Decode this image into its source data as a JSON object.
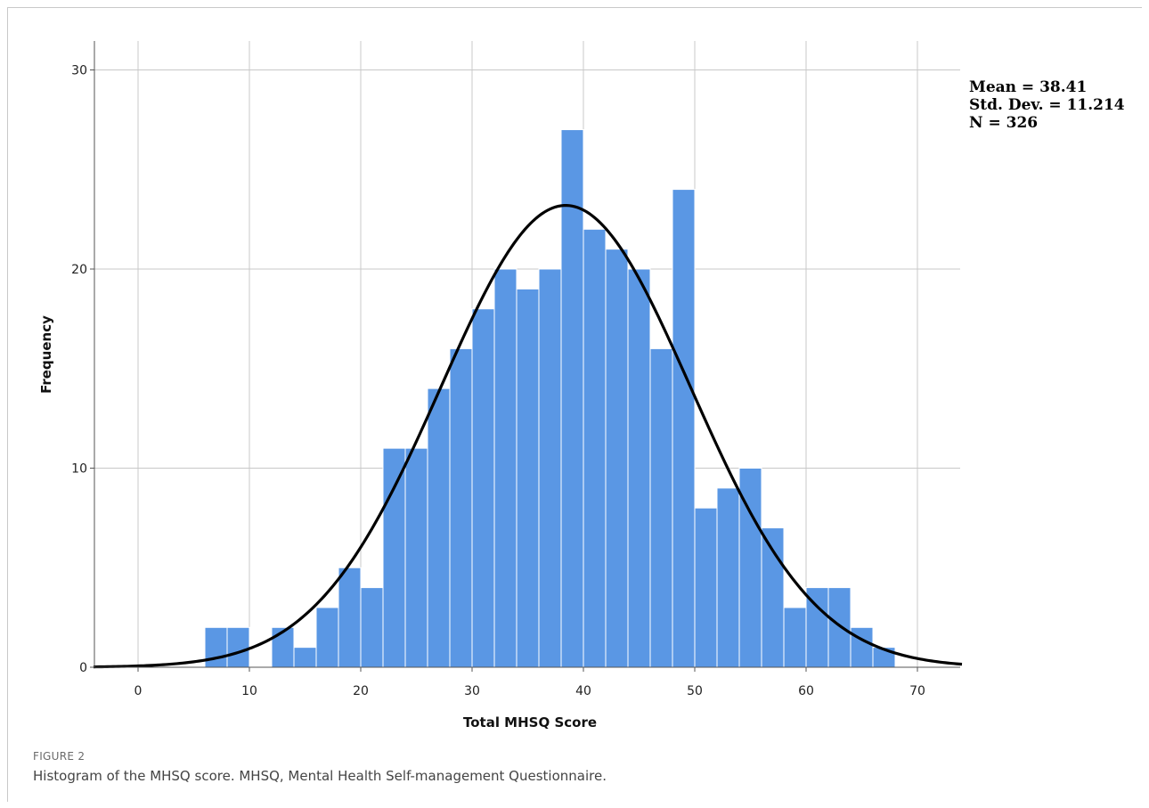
{
  "figure": {
    "label": "FIGURE 2",
    "caption": "Histogram of the MHSQ score. MHSQ, Mental Health Self-management Questionnaire."
  },
  "stats": {
    "mean": "Mean = 38.41",
    "sd": "Std. Dev. = 11.214",
    "n": "N = 326"
  },
  "chart_data": {
    "type": "bar",
    "title": "",
    "xlabel": "Total MHSQ Score",
    "ylabel": "Frequency",
    "xlim": [
      -4,
      74
    ],
    "ylim": [
      0,
      31
    ],
    "x_ticks": [
      0,
      10,
      20,
      30,
      40,
      50,
      60,
      70
    ],
    "y_ticks": [
      0,
      10,
      20,
      30
    ],
    "grid": true,
    "bin_width": 2,
    "bins": [
      {
        "start": 6,
        "count": 2
      },
      {
        "start": 8,
        "count": 2
      },
      {
        "start": 12,
        "count": 2
      },
      {
        "start": 14,
        "count": 1
      },
      {
        "start": 16,
        "count": 3
      },
      {
        "start": 18,
        "count": 5
      },
      {
        "start": 20,
        "count": 4
      },
      {
        "start": 22,
        "count": 11
      },
      {
        "start": 24,
        "count": 11
      },
      {
        "start": 26,
        "count": 14
      },
      {
        "start": 28,
        "count": 16
      },
      {
        "start": 30,
        "count": 18
      },
      {
        "start": 32,
        "count": 20
      },
      {
        "start": 34,
        "count": 19
      },
      {
        "start": 36,
        "count": 20
      },
      {
        "start": 38,
        "count": 27
      },
      {
        "start": 40,
        "count": 22
      },
      {
        "start": 42,
        "count": 21
      },
      {
        "start": 44,
        "count": 20
      },
      {
        "start": 46,
        "count": 16
      },
      {
        "start": 48,
        "count": 24
      },
      {
        "start": 50,
        "count": 8
      },
      {
        "start": 52,
        "count": 9
      },
      {
        "start": 54,
        "count": 10
      },
      {
        "start": 56,
        "count": 7
      },
      {
        "start": 58,
        "count": 3
      },
      {
        "start": 60,
        "count": 4
      },
      {
        "start": 62,
        "count": 4
      },
      {
        "start": 64,
        "count": 2
      },
      {
        "start": 66,
        "count": 1
      }
    ],
    "normal_curve": {
      "mean": 38.41,
      "sd": 11.214,
      "n": 326
    },
    "colors": {
      "bar": "#5a97e4",
      "bar_edge": "#ffffff",
      "curve": "#000000",
      "grid": "#c8c8c8",
      "axis": "#555555"
    }
  }
}
